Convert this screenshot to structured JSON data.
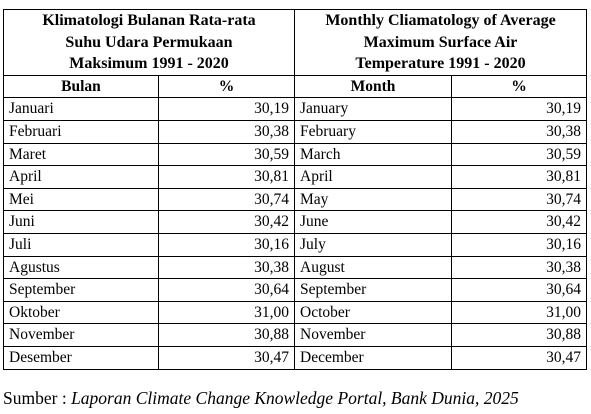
{
  "title_id_lines": [
    "Klimatologi Bulanan Rata-rata",
    "Suhu Udara Permukaan",
    "Maksimum 1991 - 2020"
  ],
  "title_en_lines": [
    "Monthly Cliamatology of Average",
    "Maximum Surface Air",
    "Temperature 1991 - 2020"
  ],
  "headers": {
    "month_id": "Bulan",
    "value_id": "%",
    "month_en": "Month",
    "value_en": "%"
  },
  "rows": [
    {
      "id": "Januari",
      "v1": "30,19",
      "en": "January",
      "v2": "30,19"
    },
    {
      "id": "Februari",
      "v1": "30,38",
      "en": "February",
      "v2": "30,38"
    },
    {
      "id": "Maret",
      "v1": "30,59",
      "en": "March",
      "v2": "30,59"
    },
    {
      "id": "April",
      "v1": "30,81",
      "en": "April",
      "v2": "30,81"
    },
    {
      "id": "Mei",
      "v1": "30,74",
      "en": "May",
      "v2": "30,74"
    },
    {
      "id": "Juni",
      "v1": "30,42",
      "en": "June",
      "v2": "30,42"
    },
    {
      "id": "Juli",
      "v1": "30,16",
      "en": "July",
      "v2": "30,16"
    },
    {
      "id": "Agustus",
      "v1": "30,38",
      "en": "August",
      "v2": "30,38"
    },
    {
      "id": "September",
      "v1": "30,64",
      "en": "September",
      "v2": "30,64"
    },
    {
      "id": "Oktober",
      "v1": "31,00",
      "en": "October",
      "v2": "31,00"
    },
    {
      "id": "November",
      "v1": "30,88",
      "en": "November",
      "v2": "30,88"
    },
    {
      "id": "Desember",
      "v1": "30,47",
      "en": "December",
      "v2": "30,47"
    }
  ],
  "source": {
    "label": "Sumber : ",
    "text": "Laporan Climate Change Knowledge Portal, Bank Dunia, 2025"
  }
}
